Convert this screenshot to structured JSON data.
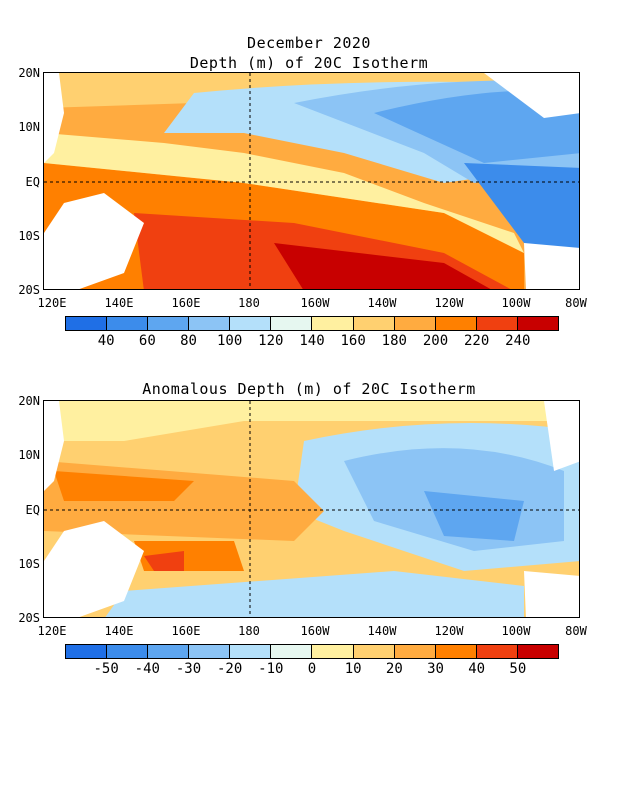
{
  "title_line1": "December 2020",
  "panel1": {
    "title": "Depth (m) of 20C Isotherm",
    "colorbar_labels": [
      "40",
      "60",
      "80",
      "100",
      "120",
      "140",
      "160",
      "180",
      "200",
      "220",
      "240"
    ],
    "colorbar_colors": [
      "#1f6fe6",
      "#3c8ceb",
      "#5ea6f0",
      "#8cc4f5",
      "#b4e0fa",
      "#e6f7f0",
      "#fff0a0",
      "#ffd070",
      "#ffab40",
      "#ff8000",
      "#f04010",
      "#c80000"
    ]
  },
  "panel2": {
    "title": "Anomalous Depth (m) of 20C Isotherm",
    "colorbar_labels": [
      "-50",
      "-40",
      "-30",
      "-20",
      "-10",
      "0",
      "10",
      "20",
      "30",
      "40",
      "50"
    ],
    "colorbar_colors": [
      "#1f6fe6",
      "#3c8ceb",
      "#5ea6f0",
      "#8cc4f5",
      "#b4e0fa",
      "#e6f7f0",
      "#fff0a0",
      "#ffd070",
      "#ffab40",
      "#ff8000",
      "#f04010",
      "#c80000"
    ]
  },
  "lat_labels": [
    "20N",
    "10N",
    "EQ",
    "10S",
    "20S"
  ],
  "lon_labels": [
    "120E",
    "140E",
    "160E",
    "180",
    "160W",
    "140W",
    "120W",
    "100W",
    "80W"
  ]
}
